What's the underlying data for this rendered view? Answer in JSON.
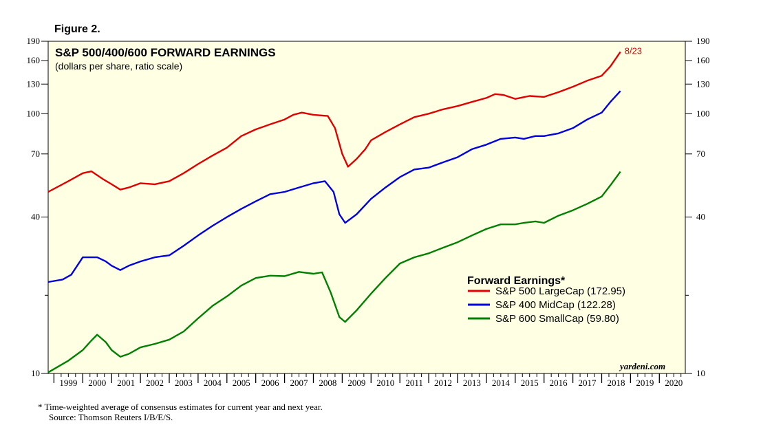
{
  "figure_label": "Figure 2.",
  "footnote": {
    "line1": "*   Time-weighted average of consensus estimates for current year and next year.",
    "line2": "Source: Thomson Reuters I/B/E/S."
  },
  "brand": "yardeni.com",
  "chart_data": {
    "type": "line",
    "title": "S&P 500/400/600 FORWARD EARNINGS",
    "subtitle": "(dollars per share, ratio scale)",
    "yscale": "log",
    "ylim": [
      10,
      190
    ],
    "yticks_labeled": [
      10,
      40,
      70,
      100,
      130,
      160,
      190
    ],
    "yticks_unlabeled": [
      20
    ],
    "xlim": [
      1998.8,
      2020.9
    ],
    "x_tick_labels": [
      "1999",
      "2000",
      "2001",
      "2002",
      "2003",
      "2004",
      "2005",
      "2006",
      "2007",
      "2008",
      "2009",
      "2010",
      "2011",
      "2012",
      "2013",
      "2014",
      "2015",
      "2016",
      "2017",
      "2018",
      "2019",
      "2020"
    ],
    "grid": false,
    "background": "#ffffe3",
    "legend": {
      "title": "Forward Earnings*",
      "placement": "right-center"
    },
    "annotation": {
      "text": "8/23",
      "x": 2018.65,
      "y": 172.95,
      "color": "#e00000"
    },
    "series": [
      {
        "name": "S&P 500 LargeCap (172.95)",
        "color": "#e00000",
        "points": [
          [
            1998.8,
            50
          ],
          [
            1999.5,
            55
          ],
          [
            2000.0,
            59
          ],
          [
            2000.3,
            60
          ],
          [
            2000.7,
            56
          ],
          [
            2001.0,
            53.5
          ],
          [
            2001.3,
            51
          ],
          [
            2001.6,
            52
          ],
          [
            2002.0,
            54
          ],
          [
            2002.5,
            53.5
          ],
          [
            2003.0,
            55
          ],
          [
            2003.5,
            59
          ],
          [
            2004.0,
            64
          ],
          [
            2004.5,
            69
          ],
          [
            2005.0,
            74
          ],
          [
            2005.5,
            82
          ],
          [
            2006.0,
            87
          ],
          [
            2006.5,
            91
          ],
          [
            2007.0,
            95
          ],
          [
            2007.3,
            99
          ],
          [
            2007.6,
            101
          ],
          [
            2008.0,
            99
          ],
          [
            2008.5,
            98
          ],
          [
            2008.75,
            88
          ],
          [
            2009.0,
            70
          ],
          [
            2009.2,
            62.5
          ],
          [
            2009.5,
            67
          ],
          [
            2009.8,
            73
          ],
          [
            2010.0,
            79
          ],
          [
            2010.5,
            85
          ],
          [
            2011.0,
            91
          ],
          [
            2011.5,
            97
          ],
          [
            2012.0,
            100
          ],
          [
            2012.5,
            104
          ],
          [
            2013.0,
            107
          ],
          [
            2013.5,
            111
          ],
          [
            2014.0,
            115
          ],
          [
            2014.3,
            119
          ],
          [
            2014.6,
            118
          ],
          [
            2015.0,
            114
          ],
          [
            2015.5,
            117
          ],
          [
            2016.0,
            116
          ],
          [
            2016.5,
            121
          ],
          [
            2017.0,
            127
          ],
          [
            2017.5,
            134
          ],
          [
            2018.0,
            140
          ],
          [
            2018.3,
            152
          ],
          [
            2018.65,
            172.95
          ]
        ]
      },
      {
        "name": "S&P 400 MidCap (122.28)",
        "color": "#0000e0",
        "points": [
          [
            1998.8,
            22.5
          ],
          [
            1999.3,
            23
          ],
          [
            1999.6,
            24
          ],
          [
            2000.0,
            28
          ],
          [
            2000.5,
            28
          ],
          [
            2000.8,
            27
          ],
          [
            2001.0,
            26
          ],
          [
            2001.3,
            25
          ],
          [
            2001.6,
            26
          ],
          [
            2002.0,
            27
          ],
          [
            2002.5,
            28
          ],
          [
            2003.0,
            28.5
          ],
          [
            2003.5,
            31
          ],
          [
            2004.0,
            34
          ],
          [
            2004.5,
            37
          ],
          [
            2005.0,
            40
          ],
          [
            2005.5,
            43
          ],
          [
            2006.0,
            46
          ],
          [
            2006.5,
            49
          ],
          [
            2007.0,
            50
          ],
          [
            2007.5,
            52
          ],
          [
            2008.0,
            54
          ],
          [
            2008.4,
            55
          ],
          [
            2008.7,
            50
          ],
          [
            2008.9,
            41
          ],
          [
            2009.1,
            38
          ],
          [
            2009.5,
            41
          ],
          [
            2010.0,
            47
          ],
          [
            2010.5,
            52
          ],
          [
            2011.0,
            57
          ],
          [
            2011.5,
            61
          ],
          [
            2012.0,
            62
          ],
          [
            2012.5,
            65
          ],
          [
            2013.0,
            68
          ],
          [
            2013.5,
            73
          ],
          [
            2014.0,
            76
          ],
          [
            2014.5,
            80
          ],
          [
            2015.0,
            81
          ],
          [
            2015.3,
            80
          ],
          [
            2015.7,
            82
          ],
          [
            2016.0,
            82
          ],
          [
            2016.5,
            84
          ],
          [
            2017.0,
            88
          ],
          [
            2017.5,
            95
          ],
          [
            2018.0,
            101
          ],
          [
            2018.3,
            111
          ],
          [
            2018.65,
            122.28
          ]
        ]
      },
      {
        "name": "S&P 600 SmallCap (59.80)",
        "color": "#008000",
        "points": [
          [
            1998.8,
            10.1
          ],
          [
            1999.5,
            11.2
          ],
          [
            2000.0,
            12.3
          ],
          [
            2000.3,
            13.4
          ],
          [
            2000.5,
            14.1
          ],
          [
            2000.8,
            13.2
          ],
          [
            2001.0,
            12.3
          ],
          [
            2001.3,
            11.6
          ],
          [
            2001.6,
            11.9
          ],
          [
            2002.0,
            12.6
          ],
          [
            2002.5,
            13
          ],
          [
            2003.0,
            13.5
          ],
          [
            2003.5,
            14.5
          ],
          [
            2004.0,
            16.3
          ],
          [
            2004.5,
            18.2
          ],
          [
            2005.0,
            19.8
          ],
          [
            2005.5,
            21.8
          ],
          [
            2006.0,
            23.3
          ],
          [
            2006.5,
            23.8
          ],
          [
            2007.0,
            23.7
          ],
          [
            2007.5,
            24.6
          ],
          [
            2008.0,
            24.2
          ],
          [
            2008.3,
            24.5
          ],
          [
            2008.6,
            20.5
          ],
          [
            2008.9,
            16.5
          ],
          [
            2009.1,
            15.8
          ],
          [
            2009.5,
            17.5
          ],
          [
            2010.0,
            20.3
          ],
          [
            2010.5,
            23.3
          ],
          [
            2011.0,
            26.5
          ],
          [
            2011.5,
            28
          ],
          [
            2012.0,
            29
          ],
          [
            2012.5,
            30.5
          ],
          [
            2013.0,
            32
          ],
          [
            2013.5,
            34
          ],
          [
            2014.0,
            36
          ],
          [
            2014.5,
            37.5
          ],
          [
            2015.0,
            37.5
          ],
          [
            2015.3,
            38
          ],
          [
            2015.7,
            38.5
          ],
          [
            2016.0,
            38
          ],
          [
            2016.5,
            40.5
          ],
          [
            2017.0,
            42.5
          ],
          [
            2017.5,
            45
          ],
          [
            2018.0,
            48
          ],
          [
            2018.3,
            53
          ],
          [
            2018.65,
            59.8
          ]
        ]
      }
    ]
  }
}
